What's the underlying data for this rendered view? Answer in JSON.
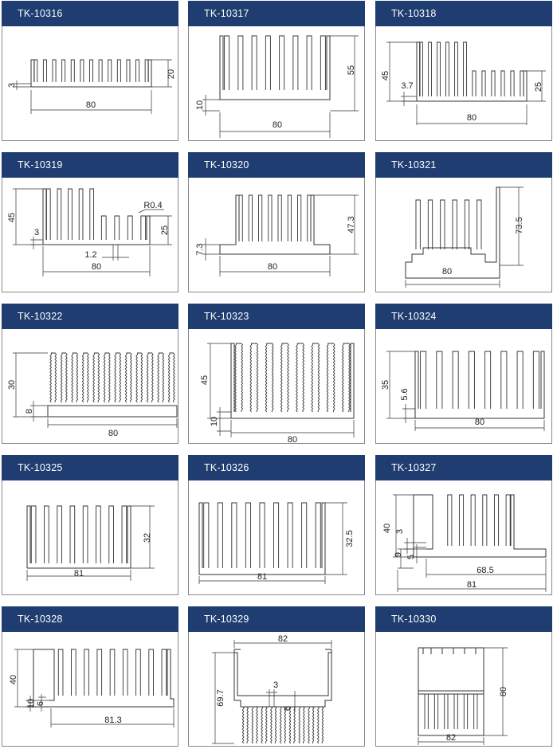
{
  "products": [
    {
      "model": "TK-10316",
      "dims": {
        "w": "80",
        "h": "20",
        "base": "3"
      }
    },
    {
      "model": "TK-10317",
      "dims": {
        "w": "80",
        "h": "55",
        "base": "10"
      }
    },
    {
      "model": "TK-10318",
      "dims": {
        "w": "80",
        "h": "45",
        "h2": "25",
        "base": "3.7"
      }
    },
    {
      "model": "TK-10319",
      "dims": {
        "w": "80",
        "h": "45",
        "h2": "25",
        "base": "3",
        "gap": "1.2",
        "radius": "R0.4"
      }
    },
    {
      "model": "TK-10320",
      "dims": {
        "w": "80",
        "h": "47.3",
        "base": "7.3"
      }
    },
    {
      "model": "TK-10321",
      "dims": {
        "w": "80",
        "h": "73.5"
      }
    },
    {
      "model": "TK-10322",
      "dims": {
        "w": "80",
        "h": "30",
        "base": "8"
      }
    },
    {
      "model": "TK-10323",
      "dims": {
        "w": "80",
        "h": "45",
        "base": "10"
      }
    },
    {
      "model": "TK-10324",
      "dims": {
        "w": "80",
        "h": "35",
        "base": "5.6"
      }
    },
    {
      "model": "TK-10325",
      "dims": {
        "w": "81",
        "h": "32"
      }
    },
    {
      "model": "TK-10326",
      "dims": {
        "w": "81",
        "h": "32.5"
      }
    },
    {
      "model": "TK-10327",
      "dims": {
        "w": "81",
        "w2": "68.5",
        "h": "40",
        "a": "3",
        "b": "9",
        "c": "5"
      }
    },
    {
      "model": "TK-10328",
      "dims": {
        "w": "81.3",
        "h": "40",
        "a": "10",
        "b": "6"
      }
    },
    {
      "model": "TK-10329",
      "dims": {
        "w": "82",
        "h": "69.7",
        "a": "3",
        "b": "6"
      }
    },
    {
      "model": "TK-10330",
      "dims": {
        "w": "82",
        "h": "80"
      }
    }
  ]
}
